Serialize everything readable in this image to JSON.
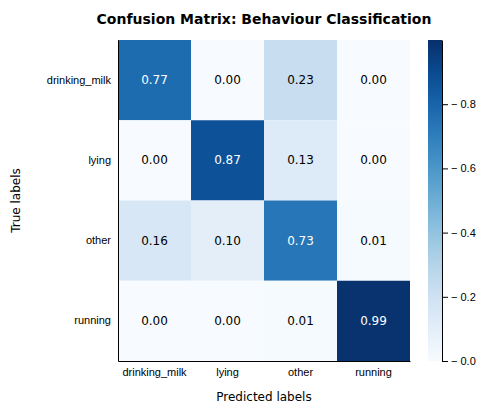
{
  "chart_data": {
    "type": "heatmap",
    "title": "Confusion Matrix: Behaviour Classification",
    "categories": [
      "drinking_milk",
      "lying",
      "other",
      "running"
    ],
    "xlabel": "Predicted labels",
    "ylabel": "True labels",
    "values": [
      [
        0.77,
        0.0,
        0.23,
        0.0
      ],
      [
        0.0,
        0.87,
        0.13,
        0.0
      ],
      [
        0.16,
        0.1,
        0.73,
        0.01
      ],
      [
        0.0,
        0.0,
        0.01,
        0.99
      ]
    ],
    "value_labels": [
      [
        "0.77",
        "0.00",
        "0.23",
        "0.00"
      ],
      [
        "0.00",
        "0.87",
        "0.13",
        "0.00"
      ],
      [
        "0.16",
        "0.10",
        "0.73",
        "0.01"
      ],
      [
        "0.00",
        "0.00",
        "0.01",
        "0.99"
      ]
    ],
    "data_labels": true,
    "colorbar_range": [
      0.0,
      1.0
    ],
    "colorbar_ticks": [
      {
        "value": 0.0,
        "label": "− 0.0"
      },
      {
        "value": 0.2,
        "label": "− 0.2"
      },
      {
        "value": 0.4,
        "label": "− 0.4"
      },
      {
        "value": 0.6,
        "label": "− 0.6"
      },
      {
        "value": 0.8,
        "label": "− 0.8"
      }
    ]
  }
}
